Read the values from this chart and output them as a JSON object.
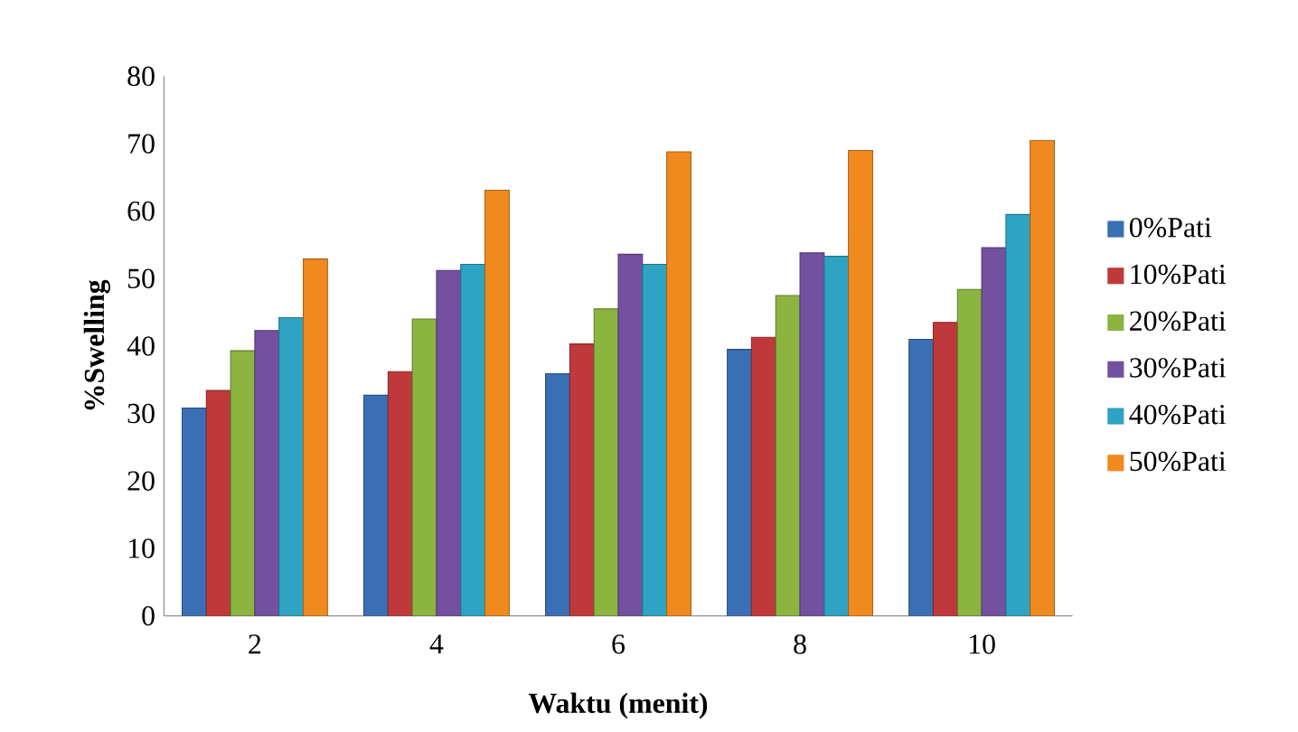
{
  "chart_data": {
    "type": "bar",
    "xlabel": "Waktu (menit)",
    "ylabel": "%Swelling",
    "categories": [
      "2",
      "4",
      "6",
      "8",
      "10"
    ],
    "series": [
      {
        "name": "0%Pati",
        "color": "#3a6fb5",
        "values": [
          30.8,
          32.7,
          35.9,
          39.5,
          41.0
        ]
      },
      {
        "name": "10%Pati",
        "color": "#c0393a",
        "values": [
          33.4,
          36.2,
          40.3,
          41.3,
          43.5
        ]
      },
      {
        "name": "20%Pati",
        "color": "#8cb440",
        "values": [
          39.3,
          44.0,
          45.5,
          47.5,
          48.4
        ]
      },
      {
        "name": "30%Pati",
        "color": "#7450a0",
        "values": [
          42.3,
          51.2,
          53.6,
          53.8,
          54.6
        ]
      },
      {
        "name": "40%Pati",
        "color": "#2ea3c4",
        "values": [
          44.2,
          52.1,
          52.1,
          53.3,
          59.5
        ]
      },
      {
        "name": "50%Pati",
        "color": "#f08a1e",
        "values": [
          52.9,
          63.1,
          68.8,
          69.0,
          70.5
        ]
      }
    ],
    "ylim": [
      0,
      80
    ],
    "yticks": [
      0,
      10,
      20,
      30,
      40,
      50,
      60,
      70,
      80
    ],
    "grid": false,
    "legend": "right"
  }
}
